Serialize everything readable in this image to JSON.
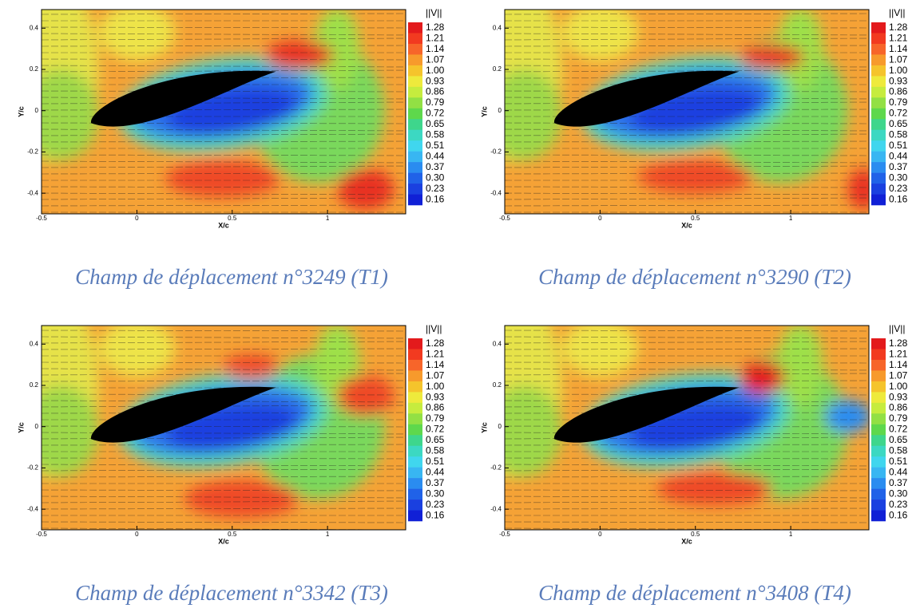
{
  "chart_data": [
    {
      "type": "contour",
      "caption": "Champ de déplacement n°3249 (T1)",
      "xlabel": "X/c",
      "ylabel": "Y/c",
      "xlim": [
        -0.5,
        1.41
      ],
      "ylim": [
        -0.5,
        0.49
      ],
      "xticks": [
        -0.5,
        0,
        0.5,
        1
      ],
      "yticks": [
        -0.4,
        -0.2,
        0,
        0.2,
        0.4
      ],
      "colorbar": {
        "title": "||V||",
        "levels": [
          1.28,
          1.21,
          1.14,
          1.07,
          {
            "value": 1,
            "label": "1.00"
          },
          0.93,
          0.86,
          0.79,
          0.72,
          0.65,
          0.58,
          0.51,
          0.44,
          0.37,
          {
            "value": 0.3,
            "label": "0.30"
          },
          0.23,
          0.16
        ],
        "colors": [
          "#e31a1c",
          "#f23a20",
          "#f7652a",
          "#f79a2c",
          "#f5c42c",
          "#eeea3c",
          "#c6ec3e",
          "#92e044",
          "#5ed84c",
          "#3ed68c",
          "#3cd8c2",
          "#40d6ee",
          "#38b6f2",
          "#2a8cf0",
          "#2062e8",
          "#1a40e0",
          "#1020d6"
        ]
      }
    },
    {
      "type": "contour",
      "caption": "Champ de déplacement n°3290 (T2)",
      "xlabel": "X/c",
      "ylabel": "Y/c",
      "xlim": [
        -0.5,
        1.41
      ],
      "ylim": [
        -0.5,
        0.49
      ],
      "xticks": [
        -0.5,
        0,
        0.5,
        1
      ],
      "yticks": [
        -0.4,
        -0.2,
        0,
        0.2,
        0.4
      ],
      "colorbar": {
        "title": "||V||",
        "levels": [
          1.28,
          1.21,
          1.14,
          1.07,
          {
            "value": 1,
            "label": "1.00"
          },
          0.93,
          0.86,
          0.79,
          0.72,
          0.65,
          0.58,
          0.51,
          0.44,
          0.37,
          {
            "value": 0.3,
            "label": "0.30"
          },
          0.23,
          0.16
        ],
        "colors": [
          "#e31a1c",
          "#f23a20",
          "#f7652a",
          "#f79a2c",
          "#f5c42c",
          "#eeea3c",
          "#c6ec3e",
          "#92e044",
          "#5ed84c",
          "#3ed68c",
          "#3cd8c2",
          "#40d6ee",
          "#38b6f2",
          "#2a8cf0",
          "#2062e8",
          "#1a40e0",
          "#1020d6"
        ]
      }
    },
    {
      "type": "contour",
      "caption": "Champ de déplacement n°3342 (T3)",
      "xlabel": "X/c",
      "ylabel": "Y/c",
      "xlim": [
        -0.5,
        1.41
      ],
      "ylim": [
        -0.5,
        0.49
      ],
      "xticks": [
        -0.5,
        0,
        0.5,
        1
      ],
      "yticks": [
        -0.4,
        -0.2,
        0,
        0.2,
        0.4
      ],
      "colorbar": {
        "title": "||V||",
        "levels": [
          1.28,
          1.21,
          1.14,
          1.07,
          {
            "value": 1,
            "label": "1.00"
          },
          0.93,
          0.86,
          0.79,
          0.72,
          0.65,
          0.58,
          0.51,
          0.44,
          0.37,
          {
            "value": 0.3,
            "label": "0.30"
          },
          0.23,
          0.16
        ],
        "colors": [
          "#e31a1c",
          "#f23a20",
          "#f7652a",
          "#f79a2c",
          "#f5c42c",
          "#eeea3c",
          "#c6ec3e",
          "#92e044",
          "#5ed84c",
          "#3ed68c",
          "#3cd8c2",
          "#40d6ee",
          "#38b6f2",
          "#2a8cf0",
          "#2062e8",
          "#1a40e0",
          "#1020d6"
        ]
      }
    },
    {
      "type": "contour",
      "caption": "Champ de déplacement n°3408 (T4)",
      "xlabel": "X/c",
      "ylabel": "Y/c",
      "xlim": [
        -0.5,
        1.41
      ],
      "ylim": [
        -0.5,
        0.49
      ],
      "xticks": [
        -0.5,
        0,
        0.5,
        1
      ],
      "yticks": [
        -0.4,
        -0.2,
        0,
        0.2,
        0.4
      ],
      "colorbar": {
        "title": "||V||",
        "levels": [
          1.28,
          1.21,
          1.14,
          1.07,
          {
            "value": 1,
            "label": "1.00"
          },
          0.93,
          0.86,
          0.79,
          0.72,
          0.65,
          0.58,
          0.51,
          0.44,
          0.37,
          {
            "value": 0.3,
            "label": "0.30"
          },
          0.23,
          0.16
        ],
        "colors": [
          "#e31a1c",
          "#f23a20",
          "#f7652a",
          "#f79a2c",
          "#f5c42c",
          "#eeea3c",
          "#c6ec3e",
          "#92e044",
          "#5ed84c",
          "#3ed68c",
          "#3cd8c2",
          "#40d6ee",
          "#38b6f2",
          "#2a8cf0",
          "#2062e8",
          "#1a40e0",
          "#1020d6"
        ]
      }
    }
  ]
}
